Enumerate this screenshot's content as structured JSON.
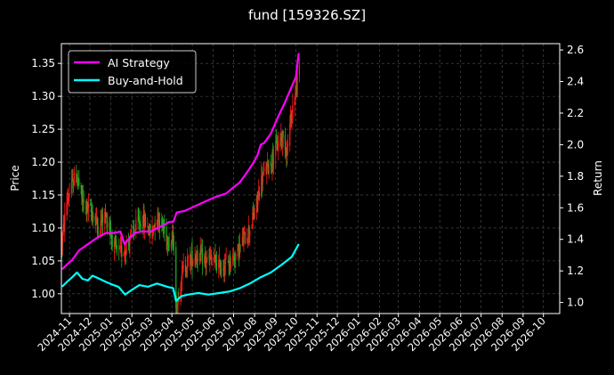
{
  "chart_data": {
    "type": "line",
    "title": "fund [159326.SZ]",
    "ylabel_left": "Price",
    "ylabel_right": "Return",
    "x_axis": {
      "type": "date",
      "range": [
        "2024-10-20",
        "2026-10-25"
      ],
      "tick_labels": [
        "2024-11",
        "2024-12",
        "2025-01",
        "2025-02",
        "2025-03",
        "2025-04",
        "2025-05",
        "2025-06",
        "2025-07",
        "2025-08",
        "2025-09",
        "2025-10",
        "2025-11",
        "2025-12",
        "2026-01",
        "2026-02",
        "2026-03",
        "2026-04",
        "2026-05",
        "2026-06",
        "2026-07",
        "2026-08",
        "2026-09",
        "2026-10"
      ]
    },
    "y_left": {
      "range": [
        0.97,
        1.38
      ],
      "ticks": [
        1.0,
        1.05,
        1.1,
        1.15,
        1.2,
        1.25,
        1.3,
        1.35
      ],
      "tick_labels": [
        "1.00",
        "1.05",
        "1.10",
        "1.15",
        "1.20",
        "1.25",
        "1.30",
        "1.35"
      ]
    },
    "y_right": {
      "range": [
        0.93,
        2.64
      ],
      "ticks": [
        1.0,
        1.2,
        1.4,
        1.6,
        1.8,
        2.0,
        2.2,
        2.4,
        2.6
      ],
      "tick_labels": [
        "1.0",
        "1.2",
        "1.4",
        "1.6",
        "1.8",
        "2.0",
        "2.2",
        "2.4",
        "2.6"
      ]
    },
    "grid": true,
    "legend_position": "top-left",
    "colors": {
      "background": "#000000",
      "ai": "#ff00ff",
      "bh": "#00ffff",
      "candle_up": "#ff1a1a",
      "candle_down": "#22aa22",
      "grid": "#555555",
      "text": "#ffffff"
    },
    "price_candles": {
      "axis": "left",
      "anchors": [
        {
          "date": "2024-10-21",
          "close": 1.08
        },
        {
          "date": "2024-10-28",
          "close": 1.14
        },
        {
          "date": "2024-11-06",
          "close": 1.17
        },
        {
          "date": "2024-11-12",
          "close": 1.18
        },
        {
          "date": "2024-11-20",
          "close": 1.14
        },
        {
          "date": "2024-11-28",
          "close": 1.13
        },
        {
          "date": "2024-12-06",
          "close": 1.12
        },
        {
          "date": "2024-12-14",
          "close": 1.1
        },
        {
          "date": "2024-12-22",
          "close": 1.12
        },
        {
          "date": "2024-12-28",
          "close": 1.11
        },
        {
          "date": "2025-01-06",
          "close": 1.07
        },
        {
          "date": "2025-01-14",
          "close": 1.06
        },
        {
          "date": "2025-01-22",
          "close": 1.07
        },
        {
          "date": "2025-02-01",
          "close": 1.09
        },
        {
          "date": "2025-02-12",
          "close": 1.11
        },
        {
          "date": "2025-02-20",
          "close": 1.11
        },
        {
          "date": "2025-03-01",
          "close": 1.09
        },
        {
          "date": "2025-03-10",
          "close": 1.12
        },
        {
          "date": "2025-03-20",
          "close": 1.1
        },
        {
          "date": "2025-03-28",
          "close": 1.08
        },
        {
          "date": "2025-04-04",
          "close": 1.08
        },
        {
          "date": "2025-04-07",
          "close": 0.97
        },
        {
          "date": "2025-04-15",
          "close": 1.03
        },
        {
          "date": "2025-04-25",
          "close": 1.05
        },
        {
          "date": "2025-05-08",
          "close": 1.06
        },
        {
          "date": "2025-05-20",
          "close": 1.05
        },
        {
          "date": "2025-06-01",
          "close": 1.05
        },
        {
          "date": "2025-06-12",
          "close": 1.04
        },
        {
          "date": "2025-06-25",
          "close": 1.05
        },
        {
          "date": "2025-07-05",
          "close": 1.06
        },
        {
          "date": "2025-07-15",
          "close": 1.08
        },
        {
          "date": "2025-07-25",
          "close": 1.1
        },
        {
          "date": "2025-08-03",
          "close": 1.13
        },
        {
          "date": "2025-08-10",
          "close": 1.17
        },
        {
          "date": "2025-08-18",
          "close": 1.19
        },
        {
          "date": "2025-08-25",
          "close": 1.2
        },
        {
          "date": "2025-09-01",
          "close": 1.22
        },
        {
          "date": "2025-09-10",
          "close": 1.24
        },
        {
          "date": "2025-09-18",
          "close": 1.22
        },
        {
          "date": "2025-09-25",
          "close": 1.28
        },
        {
          "date": "2025-10-01",
          "close": 1.31
        },
        {
          "date": "2025-10-06",
          "close": 1.34
        }
      ]
    },
    "series": [
      {
        "name": "AI Strategy",
        "axis": "right",
        "color": "#ff00ff",
        "points": [
          {
            "date": "2024-10-21",
            "value": 1.21
          },
          {
            "date": "2024-10-28",
            "value": 1.24
          },
          {
            "date": "2024-11-05",
            "value": 1.27
          },
          {
            "date": "2024-11-15",
            "value": 1.33
          },
          {
            "date": "2024-11-25",
            "value": 1.36
          },
          {
            "date": "2024-12-05",
            "value": 1.39
          },
          {
            "date": "2024-12-15",
            "value": 1.42
          },
          {
            "date": "2024-12-25",
            "value": 1.44
          },
          {
            "date": "2025-01-05",
            "value": 1.44
          },
          {
            "date": "2025-01-15",
            "value": 1.45
          },
          {
            "date": "2025-01-21",
            "value": 1.37
          },
          {
            "date": "2025-01-27",
            "value": 1.4
          },
          {
            "date": "2025-02-05",
            "value": 1.44
          },
          {
            "date": "2025-02-15",
            "value": 1.45
          },
          {
            "date": "2025-03-01",
            "value": 1.45
          },
          {
            "date": "2025-03-10",
            "value": 1.47
          },
          {
            "date": "2025-03-20",
            "value": 1.49
          },
          {
            "date": "2025-03-28",
            "value": 1.51
          },
          {
            "date": "2025-04-03",
            "value": 1.51
          },
          {
            "date": "2025-04-08",
            "value": 1.57
          },
          {
            "date": "2025-04-20",
            "value": 1.58
          },
          {
            "date": "2025-05-05",
            "value": 1.61
          },
          {
            "date": "2025-05-20",
            "value": 1.64
          },
          {
            "date": "2025-06-05",
            "value": 1.67
          },
          {
            "date": "2025-06-20",
            "value": 1.69
          },
          {
            "date": "2025-07-01",
            "value": 1.73
          },
          {
            "date": "2025-07-10",
            "value": 1.76
          },
          {
            "date": "2025-07-20",
            "value": 1.82
          },
          {
            "date": "2025-07-28",
            "value": 1.87
          },
          {
            "date": "2025-08-05",
            "value": 1.93
          },
          {
            "date": "2025-08-10",
            "value": 2.0
          },
          {
            "date": "2025-08-15",
            "value": 2.01
          },
          {
            "date": "2025-08-25",
            "value": 2.07
          },
          {
            "date": "2025-09-05",
            "value": 2.18
          },
          {
            "date": "2025-09-15",
            "value": 2.27
          },
          {
            "date": "2025-09-25",
            "value": 2.37
          },
          {
            "date": "2025-10-01",
            "value": 2.43
          },
          {
            "date": "2025-10-05",
            "value": 2.58
          }
        ]
      },
      {
        "name": "Buy-and-Hold",
        "axis": "right",
        "color": "#00ffff",
        "points": [
          {
            "date": "2024-10-21",
            "value": 1.1
          },
          {
            "date": "2024-10-28",
            "value": 1.13
          },
          {
            "date": "2024-11-05",
            "value": 1.16
          },
          {
            "date": "2024-11-12",
            "value": 1.19
          },
          {
            "date": "2024-11-20",
            "value": 1.15
          },
          {
            "date": "2024-11-28",
            "value": 1.14
          },
          {
            "date": "2024-12-05",
            "value": 1.17
          },
          {
            "date": "2024-12-15",
            "value": 1.15
          },
          {
            "date": "2024-12-25",
            "value": 1.13
          },
          {
            "date": "2025-01-05",
            "value": 1.11
          },
          {
            "date": "2025-01-12",
            "value": 1.1
          },
          {
            "date": "2025-01-22",
            "value": 1.05
          },
          {
            "date": "2025-02-01",
            "value": 1.08
          },
          {
            "date": "2025-02-12",
            "value": 1.11
          },
          {
            "date": "2025-02-25",
            "value": 1.1
          },
          {
            "date": "2025-03-10",
            "value": 1.12
          },
          {
            "date": "2025-03-25",
            "value": 1.1
          },
          {
            "date": "2025-04-03",
            "value": 1.09
          },
          {
            "date": "2025-04-07",
            "value": 1.01
          },
          {
            "date": "2025-04-15",
            "value": 1.04
          },
          {
            "date": "2025-04-25",
            "value": 1.05
          },
          {
            "date": "2025-05-10",
            "value": 1.06
          },
          {
            "date": "2025-05-25",
            "value": 1.05
          },
          {
            "date": "2025-06-10",
            "value": 1.06
          },
          {
            "date": "2025-06-25",
            "value": 1.07
          },
          {
            "date": "2025-07-10",
            "value": 1.09
          },
          {
            "date": "2025-07-25",
            "value": 1.12
          },
          {
            "date": "2025-08-10",
            "value": 1.16
          },
          {
            "date": "2025-08-25",
            "value": 1.19
          },
          {
            "date": "2025-09-10",
            "value": 1.24
          },
          {
            "date": "2025-09-25",
            "value": 1.29
          },
          {
            "date": "2025-10-05",
            "value": 1.37
          }
        ]
      }
    ]
  }
}
